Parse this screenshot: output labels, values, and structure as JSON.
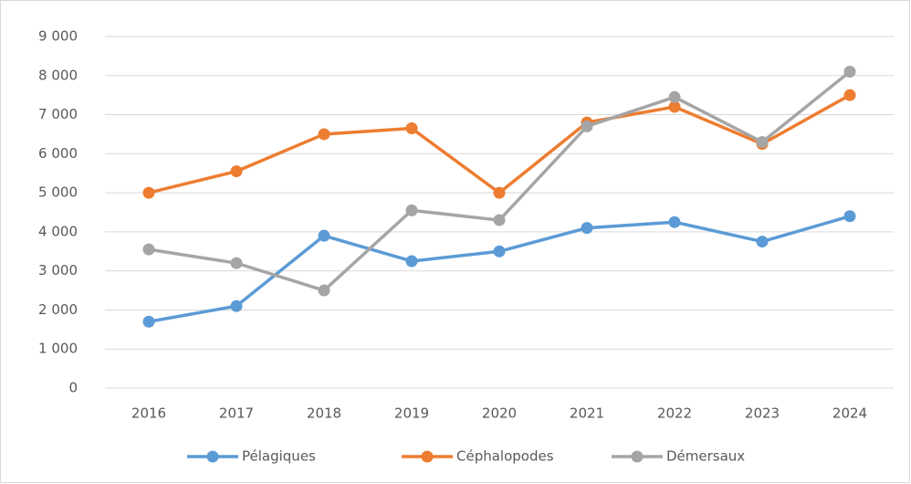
{
  "chart_data": {
    "type": "line",
    "categories": [
      "2016",
      "2017",
      "2018",
      "2019",
      "2020",
      "2021",
      "2022",
      "2023",
      "2024"
    ],
    "series": [
      {
        "name": "Pélagiques",
        "color": "#5b9bd5",
        "values": [
          1700,
          2100,
          3900,
          3250,
          3500,
          4100,
          4250,
          3750,
          4400
        ]
      },
      {
        "name": "Céphalopodes",
        "color": "#ed7d31",
        "values": [
          5000,
          5550,
          6500,
          6650,
          5000,
          6800,
          7200,
          6250,
          7500
        ]
      },
      {
        "name": "Démersaux",
        "color": "#a5a5a5",
        "values": [
          3550,
          3200,
          2500,
          4550,
          4300,
          6700,
          7450,
          6300,
          8100
        ]
      }
    ],
    "ylim": [
      0,
      9000
    ],
    "yticks": [
      0,
      {
        "value": 1000,
        "label": "1 000"
      },
      {
        "value": 2000,
        "label": "2 000"
      },
      {
        "value": 3000,
        "label": "3 000"
      },
      {
        "value": 4000,
        "label": "4 000"
      },
      {
        "value": 5000,
        "label": "5 000"
      },
      {
        "value": 6000,
        "label": "6 000"
      },
      {
        "value": 7000,
        "label": "7 000"
      },
      {
        "value": 8000,
        "label": "8 000"
      },
      {
        "value": 9000,
        "label": "9 000"
      }
    ],
    "grid": true,
    "legend": "bottom"
  }
}
